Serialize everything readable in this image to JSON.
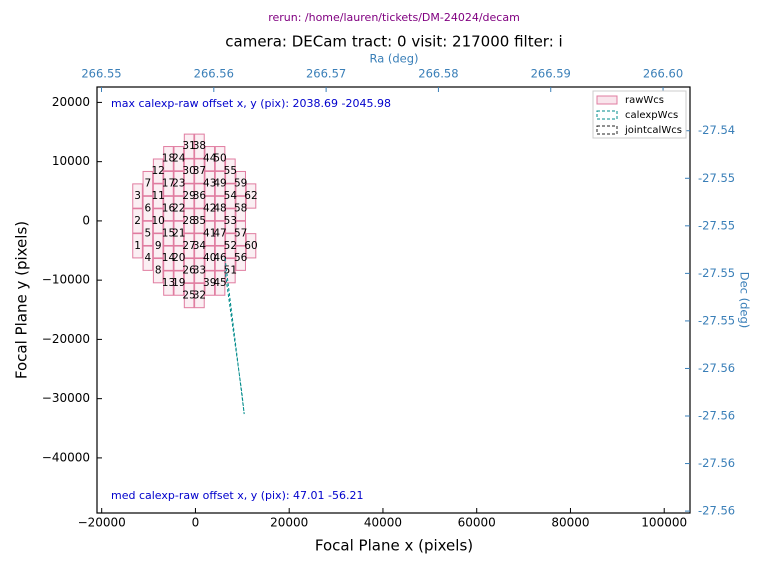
{
  "chart_data": {
    "type": "footprint",
    "subtitle": "rerun: /home/lauren/tickets/DM-24024/decam",
    "title": "camera: DECam  tract: 0  visit: 217000 filter: i",
    "x_label": "Focal Plane x (pixels)",
    "y_label": "Focal Plane y (pixels)",
    "x2_label": "Ra (deg)",
    "y2_label": "Dec (deg)",
    "annotation_top": "max calexp-raw offset x, y (pix): 2038.69 -2045.98",
    "annotation_bottom": "med calexp-raw offset x, y (pix):    47.01  -56.21",
    "xlim": [
      -21000,
      105500
    ],
    "ylim": [
      -49300,
      22600
    ],
    "xticks": [
      {
        "value": -20000,
        "label": "−20000"
      },
      0,
      20000,
      40000,
      60000,
      80000,
      100000
    ],
    "yticks": [
      {
        "value": -40000,
        "label": "−40000"
      },
      {
        "value": -30000,
        "label": "−30000"
      },
      {
        "value": -20000,
        "label": "−20000"
      },
      {
        "value": -10000,
        "label": "−10000"
      },
      0,
      10000,
      20000
    ],
    "x2lim": [
      266.5496,
      266.6024
    ],
    "x2ticks": [
      266.55,
      266.56,
      266.57,
      266.58,
      266.59,
      {
        "value": 266.6,
        "label": "266.60"
      }
    ],
    "y2lim": [
      -27.5641,
      -27.5417
    ],
    "y2ticks": [
      {
        "value": -27.544,
        "label": "-27.54"
      },
      {
        "value": -27.5465,
        "label": "-27.55"
      },
      {
        "value": -27.549,
        "label": "-27.55"
      },
      {
        "value": -27.5515,
        "label": "-27.55"
      },
      {
        "value": -27.554,
        "label": "-27.55"
      },
      {
        "value": -27.5565,
        "label": "-27.56"
      },
      {
        "value": -27.559,
        "label": "-27.56"
      },
      {
        "value": -27.5615,
        "label": "-27.56"
      },
      {
        "value": -27.564,
        "label": "-27.56"
      }
    ],
    "ccd_width": 2048,
    "ccd_height": 4096,
    "ccds": {
      "labels": [
        1,
        2,
        3,
        4,
        5,
        6,
        7,
        8,
        9,
        10,
        11,
        12,
        13,
        14,
        15,
        16,
        17,
        18,
        19,
        20,
        21,
        22,
        23,
        24,
        25,
        26,
        27,
        28,
        29,
        30,
        31,
        32,
        33,
        34,
        35,
        36,
        37,
        38,
        39,
        40,
        41,
        42,
        43,
        44,
        45,
        46,
        47,
        48,
        49,
        50,
        51,
        52,
        53,
        54,
        55,
        56,
        57,
        58,
        59,
        60,
        62
      ],
      "x": [
        -12350,
        -12350,
        -12350,
        -10150,
        -10150,
        -10150,
        -10150,
        -7950,
        -7950,
        -7950,
        -7950,
        -7950,
        -5750,
        -5750,
        -5750,
        -5750,
        -5750,
        -5750,
        -3550,
        -3550,
        -3550,
        -3550,
        -3550,
        -3550,
        -1350,
        -1350,
        -1350,
        -1350,
        -1350,
        -1350,
        -1350,
        850,
        850,
        850,
        850,
        850,
        850,
        850,
        3050,
        3050,
        3050,
        3050,
        3050,
        3050,
        5250,
        5250,
        5250,
        5250,
        5250,
        5250,
        7450,
        7450,
        7450,
        7450,
        7450,
        9650,
        9650,
        9650,
        9650,
        11850,
        11850
      ],
      "y": [
        -4200,
        0,
        4200,
        -6300,
        -2100,
        2100,
        6300,
        -8400,
        -4200,
        0,
        4200,
        8400,
        -10500,
        -6300,
        -2100,
        2100,
        6300,
        10500,
        -10500,
        -6300,
        -2100,
        2100,
        6300,
        10500,
        -12600,
        -8400,
        -4200,
        0,
        4200,
        8400,
        12600,
        -12600,
        -8400,
        -4200,
        0,
        4200,
        8400,
        12600,
        -10500,
        -6300,
        -2100,
        2100,
        6300,
        10500,
        -10500,
        -6300,
        -2100,
        2100,
        6300,
        10500,
        -8400,
        -4200,
        0,
        4200,
        8400,
        -6300,
        -2100,
        2100,
        6300,
        -4200,
        4200
      ]
    },
    "series": [
      {
        "name": "rawWcs",
        "color": "#e07ca0"
      },
      {
        "name": "calexpWcs",
        "color": "#008b8b",
        "x": [
          6300,
          10400,
          9900,
          6300
        ],
        "values": [
          -6300,
          -32600,
          -29000,
          -8400
        ]
      },
      {
        "name": "jointcalWcs",
        "color": "#222222"
      }
    ]
  }
}
